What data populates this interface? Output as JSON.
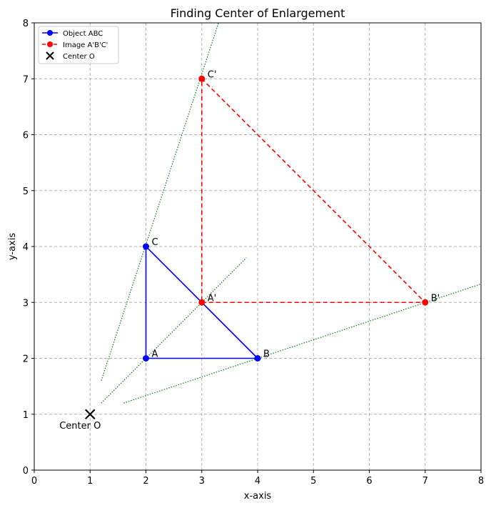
{
  "chart_data": {
    "type": "scatter",
    "title": "Finding Center of Enlargement",
    "xlabel": "x-axis",
    "ylabel": "y-axis",
    "xlim": [
      0,
      8
    ],
    "ylim": [
      0,
      8
    ],
    "xticks": [
      0,
      1,
      2,
      3,
      4,
      5,
      6,
      7,
      8
    ],
    "yticks": [
      0,
      1,
      2,
      3,
      4,
      5,
      6,
      7,
      8
    ],
    "grid": true,
    "legend_position": "top-left",
    "series": [
      {
        "name": "Object ABC",
        "color": "#0000ff",
        "line_style": "solid",
        "points": [
          {
            "label": "A",
            "x": 2,
            "y": 2
          },
          {
            "label": "B",
            "x": 4,
            "y": 2
          },
          {
            "label": "C",
            "x": 2,
            "y": 4
          }
        ]
      },
      {
        "name": "Image A'B'C'",
        "color": "#ff0000",
        "line_style": "dashed",
        "points": [
          {
            "label": "A'",
            "x": 3,
            "y": 3
          },
          {
            "label": "B'",
            "x": 7,
            "y": 3
          },
          {
            "label": "C'",
            "x": 3,
            "y": 7
          }
        ]
      }
    ],
    "center": {
      "name": "Center O",
      "label": "Center O",
      "x": 1,
      "y": 1,
      "color": "#000000"
    },
    "guide_lines": {
      "color": "#008000",
      "style": "dotted",
      "segments": [
        {
          "x1": 1.2,
          "y1": 1.6,
          "x2": 3.3,
          "y2": 8.0
        },
        {
          "x1": 1.2,
          "y1": 1.2,
          "x2": 3.8,
          "y2": 3.8
        },
        {
          "x1": 1.6,
          "y1": 1.2,
          "x2": 8.0,
          "y2": 3.33
        }
      ]
    }
  }
}
